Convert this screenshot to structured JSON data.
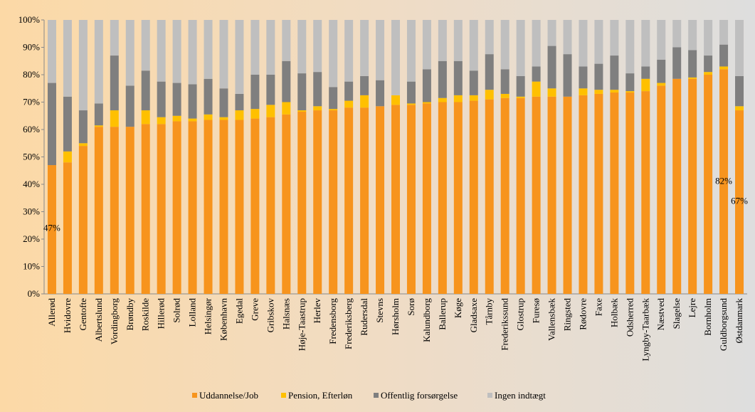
{
  "chart_data": {
    "type": "stacked_bar",
    "categories": [
      "Allerød",
      "Hvidovre",
      "Gentofte",
      "Albertslund",
      "Vordingborg",
      "Brøndby",
      "Roskilde",
      "Hillerød",
      "Solrød",
      "Lolland",
      "Helsingør",
      "København",
      "Egedal",
      "Greve",
      "Gribskov",
      "Halsnæs",
      "Høje-Taastrup",
      "Herlev",
      "Fredensborg",
      "Frederiksberg",
      "Rudersdal",
      "Stevns",
      "Hørsholm",
      "Sorø",
      "Kalundborg",
      "Ballerup",
      "Køge",
      "Gladsaxe",
      "Tårnby",
      "Frederikssund",
      "Glostrup",
      "Furesø",
      "Vallensbæk",
      "Ringsted",
      "Rødovre",
      "Faxe",
      "Holbæk",
      "Odsherred",
      "Lyngby-Taarbæk",
      "Næstved",
      "Slagelse",
      "Lejre",
      "Bornholm",
      "Guldborgsund",
      "Østdanmark"
    ],
    "series": [
      {
        "name": "Uddannelse/Job",
        "color": "#f7941d",
        "values": [
          47,
          48,
          54,
          61,
          61,
          61,
          62,
          62,
          63,
          63,
          63.5,
          63.5,
          63.5,
          64,
          64.5,
          65.5,
          66.5,
          67,
          67,
          68,
          68,
          68.5,
          69,
          69,
          69.5,
          70,
          70,
          70.5,
          71,
          71.5,
          71.5,
          72,
          72,
          72,
          72.5,
          73,
          73.5,
          73.5,
          74,
          76,
          78.5,
          78.5,
          80,
          82,
          67
        ],
        "value_labels": [
          "47%",
          null,
          null,
          null,
          null,
          null,
          null,
          null,
          null,
          null,
          null,
          null,
          null,
          null,
          null,
          null,
          null,
          null,
          null,
          null,
          null,
          null,
          null,
          null,
          null,
          null,
          null,
          null,
          null,
          null,
          null,
          null,
          null,
          null,
          null,
          null,
          null,
          null,
          null,
          null,
          null,
          null,
          null,
          "82%",
          "67%"
        ]
      },
      {
        "name": "Pension, Efterløn",
        "color": "#ffc000",
        "values": [
          0,
          4,
          1,
          0.5,
          6,
          0,
          5,
          2.5,
          2,
          1,
          2,
          1,
          3.5,
          3.5,
          4.5,
          4.5,
          0.5,
          1.5,
          0.5,
          2.5,
          4.5,
          0,
          3.5,
          0.5,
          0.5,
          1.5,
          2.5,
          2,
          3.5,
          1.5,
          0.5,
          5.5,
          3,
          0,
          2.5,
          1.5,
          1,
          0.5,
          4.5,
          1,
          0,
          0.5,
          1,
          1,
          1.5
        ]
      },
      {
        "name": "Offentlig forsørgelse",
        "color": "#7f7f7f",
        "values": [
          30,
          20,
          12,
          8,
          20,
          15,
          14.5,
          13,
          12,
          12.5,
          13,
          10.5,
          6,
          12.5,
          11,
          15,
          13.5,
          12.5,
          8,
          7,
          7,
          9.5,
          0,
          8,
          12,
          13.5,
          12.5,
          9,
          13,
          9,
          7.5,
          5.5,
          15.5,
          15.5,
          8,
          9.5,
          12.5,
          6.5,
          4.5,
          8.5,
          11.5,
          10,
          6,
          8,
          11
        ]
      },
      {
        "name": "Ingen indtægt",
        "color": "#bfbfbf",
        "values": [
          23,
          28,
          33,
          30.5,
          13,
          24,
          18.5,
          22.5,
          23,
          23.5,
          21.5,
          25,
          27,
          20,
          20,
          15,
          19.5,
          19,
          24.5,
          22.5,
          20.5,
          22,
          27.5,
          22.5,
          18,
          15,
          15,
          18.5,
          12.5,
          18,
          20.5,
          17,
          9.5,
          12.5,
          17,
          16,
          13,
          19.5,
          17,
          14.5,
          10,
          11,
          13,
          9,
          20.5
        ]
      }
    ],
    "ylim": [
      0,
      100
    ],
    "yticks": [
      {
        "value": 0,
        "label": "0%"
      },
      {
        "value": 10,
        "label": "10%"
      },
      {
        "value": 20,
        "label": "20%"
      },
      {
        "value": 30,
        "label": "30%"
      },
      {
        "value": 40,
        "label": "40%"
      },
      {
        "value": 50,
        "label": "50%"
      },
      {
        "value": 60,
        "label": "60%"
      },
      {
        "value": 70,
        "label": "70%"
      },
      {
        "value": 80,
        "label": "80%"
      },
      {
        "value": 90,
        "label": "90%"
      },
      {
        "value": 100,
        "label": "100%"
      }
    ],
    "legend": "bottom"
  }
}
